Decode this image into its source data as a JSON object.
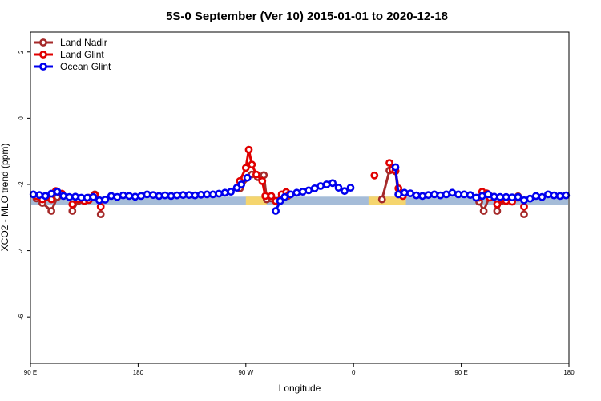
{
  "chart_data": {
    "type": "line",
    "title": "5S-0 September (Ver 10)   2015-01-01 to 2020-12-18",
    "xlabel": "Longitude",
    "ylabel": "XCO2 - MLO trend (ppm)",
    "xlim": [
      -90,
      270
    ],
    "ylim": [
      -7.4,
      2.6
    ],
    "x_ticks": [
      {
        "value": -90,
        "label": "90 E"
      },
      {
        "value": -18,
        "label": "180"
      },
      {
        "value": 54,
        "label": "90 W"
      },
      {
        "value": 126,
        "label": "0"
      },
      {
        "value": 198,
        "label": "90 E"
      },
      {
        "value": 270,
        "label": "180"
      }
    ],
    "y_ticks": [
      {
        "value": 2,
        "label": "2"
      },
      {
        "value": 0,
        "label": "0"
      },
      {
        "value": -2,
        "label": "-2"
      },
      {
        "value": -4,
        "label": "-4"
      },
      {
        "value": -6,
        "label": "-6"
      }
    ],
    "background_band": {
      "y_top": -2.37,
      "y_bottom": -2.62,
      "color": "#a5bcd8",
      "highlight_color": "#f5d56e",
      "highlight_ranges": [
        [
          54,
          68
        ],
        [
          136,
          161
        ]
      ]
    },
    "legend_position": "top-left",
    "series": [
      {
        "name": "Land Nadir",
        "color": "#a52a2a",
        "segments": [
          [
            [
              -86,
              -2.42
            ],
            [
              -82,
              -2.56
            ],
            [
              -76,
              -2.8
            ],
            [
              -72,
              -2.38
            ]
          ],
          [
            [
              -62,
              -2.8
            ],
            [
              -58,
              -2.5
            ],
            [
              -54,
              -2.45
            ],
            [
              -51,
              -2.4
            ],
            [
              -47,
              -2.3
            ]
          ],
          [
            [
              -43,
              -2.9
            ]
          ],
          [
            [
              50,
              -2.12
            ],
            [
              58,
              -1.7
            ],
            [
              62,
              -1.78
            ],
            [
              66,
              -1.72
            ],
            [
              68,
              -2.45
            ],
            [
              71,
              -2.42
            ],
            [
              74,
              -2.5
            ],
            [
              78,
              -2.42
            ],
            [
              80,
              -2.3
            ],
            [
              82,
              -2.35
            ]
          ],
          [
            [
              145,
              -2.45
            ],
            [
              150,
              -1.58
            ],
            [
              154,
              -1.6
            ],
            [
              156,
              -2.3
            ]
          ],
          [
            [
              210,
              -2.52
            ],
            [
              213,
              -2.8
            ],
            [
              217,
              -2.35
            ]
          ],
          [
            [
              222,
              -2.8
            ],
            [
              225,
              -2.5
            ],
            [
              228,
              -2.4
            ],
            [
              232,
              -2.4
            ],
            [
              236,
              -2.36
            ]
          ],
          [
            [
              240,
              -2.9
            ]
          ]
        ]
      },
      {
        "name": "Land Glint",
        "color": "#e00000",
        "segments": [
          [
            [
              -86,
              -2.35
            ],
            [
              -82,
              -2.45
            ],
            [
              -76,
              -2.45
            ],
            [
              -73,
              -2.2
            ],
            [
              -69,
              -2.28
            ]
          ],
          [
            [
              -62,
              -2.6
            ],
            [
              -58,
              -2.45
            ],
            [
              -54,
              -2.5
            ],
            [
              -51,
              -2.47
            ],
            [
              -47,
              -2.32
            ]
          ],
          [
            [
              -43,
              -2.67
            ]
          ],
          [
            [
              50,
              -1.9
            ],
            [
              54,
              -1.5
            ],
            [
              56,
              -0.95
            ],
            [
              58,
              -1.4
            ],
            [
              61,
              -1.7
            ],
            [
              65,
              -1.9
            ],
            [
              67,
              -2.35
            ],
            [
              71,
              -2.35
            ],
            [
              74,
              -2.5
            ],
            [
              78,
              -2.3
            ],
            [
              81,
              -2.23
            ],
            [
              83,
              -2.3
            ]
          ],
          [
            [
              140,
              -1.73
            ]
          ],
          [
            [
              150,
              -1.35
            ],
            [
              152,
              -1.55
            ],
            [
              154,
              -1.58
            ],
            [
              156,
              -2.12
            ],
            [
              159,
              -2.35
            ]
          ],
          [
            [
              210,
              -2.4
            ],
            [
              212,
              -2.22
            ],
            [
              215,
              -2.27
            ],
            [
              217,
              -2.4
            ]
          ],
          [
            [
              222,
              -2.6
            ],
            [
              225,
              -2.45
            ],
            [
              228,
              -2.5
            ],
            [
              232,
              -2.52
            ],
            [
              236,
              -2.4
            ]
          ],
          [
            [
              240,
              -2.67
            ]
          ]
        ]
      },
      {
        "name": "Ocean Glint",
        "color": "#0000ee",
        "segments": [
          [
            [
              -88,
              -2.3
            ],
            [
              -84,
              -2.32
            ],
            [
              -80,
              -2.35
            ],
            [
              -76,
              -2.28
            ],
            [
              -72,
              -2.22
            ],
            [
              -68,
              -2.35
            ],
            [
              -64,
              -2.38
            ],
            [
              -60,
              -2.37
            ],
            [
              -56,
              -2.4
            ],
            [
              -52,
              -2.4
            ],
            [
              -48,
              -2.38
            ],
            [
              -44,
              -2.48
            ],
            [
              -40,
              -2.46
            ],
            [
              -36,
              -2.35
            ],
            [
              -32,
              -2.38
            ],
            [
              -28,
              -2.33
            ],
            [
              -24,
              -2.35
            ],
            [
              -20,
              -2.37
            ],
            [
              -16,
              -2.35
            ],
            [
              -12,
              -2.3
            ],
            [
              -8,
              -2.32
            ],
            [
              -4,
              -2.35
            ],
            [
              0,
              -2.33
            ],
            [
              4,
              -2.35
            ],
            [
              8,
              -2.33
            ],
            [
              12,
              -2.32
            ],
            [
              16,
              -2.32
            ],
            [
              20,
              -2.33
            ],
            [
              24,
              -2.31
            ],
            [
              28,
              -2.3
            ],
            [
              32,
              -2.3
            ],
            [
              36,
              -2.28
            ],
            [
              40,
              -2.25
            ],
            [
              44,
              -2.22
            ],
            [
              48,
              -2.1
            ],
            [
              51,
              -2.0
            ],
            [
              55,
              -1.8
            ]
          ],
          [
            [
              74,
              -2.8
            ],
            [
              77,
              -2.5
            ],
            [
              80,
              -2.38
            ],
            [
              84,
              -2.3
            ],
            [
              88,
              -2.25
            ],
            [
              92,
              -2.22
            ],
            [
              96,
              -2.18
            ],
            [
              100,
              -2.12
            ],
            [
              104,
              -2.05
            ],
            [
              108,
              -2.0
            ],
            [
              112,
              -1.96
            ],
            [
              116,
              -2.1
            ],
            [
              120,
              -2.2
            ],
            [
              124,
              -2.1
            ]
          ],
          [
            [
              154,
              -1.48
            ],
            [
              156,
              -2.3
            ],
            [
              160,
              -2.25
            ],
            [
              164,
              -2.27
            ],
            [
              168,
              -2.33
            ],
            [
              172,
              -2.35
            ],
            [
              176,
              -2.32
            ],
            [
              180,
              -2.3
            ],
            [
              184,
              -2.33
            ],
            [
              188,
              -2.3
            ],
            [
              192,
              -2.25
            ],
            [
              196,
              -2.3
            ],
            [
              200,
              -2.3
            ],
            [
              204,
              -2.32
            ],
            [
              208,
              -2.4
            ],
            [
              212,
              -2.35
            ],
            [
              216,
              -2.3
            ],
            [
              220,
              -2.37
            ],
            [
              224,
              -2.38
            ],
            [
              228,
              -2.38
            ],
            [
              232,
              -2.39
            ],
            [
              236,
              -2.38
            ],
            [
              240,
              -2.48
            ],
            [
              244,
              -2.43
            ],
            [
              248,
              -2.35
            ],
            [
              252,
              -2.38
            ],
            [
              256,
              -2.3
            ],
            [
              260,
              -2.33
            ],
            [
              264,
              -2.35
            ],
            [
              268,
              -2.33
            ]
          ]
        ]
      }
    ]
  }
}
